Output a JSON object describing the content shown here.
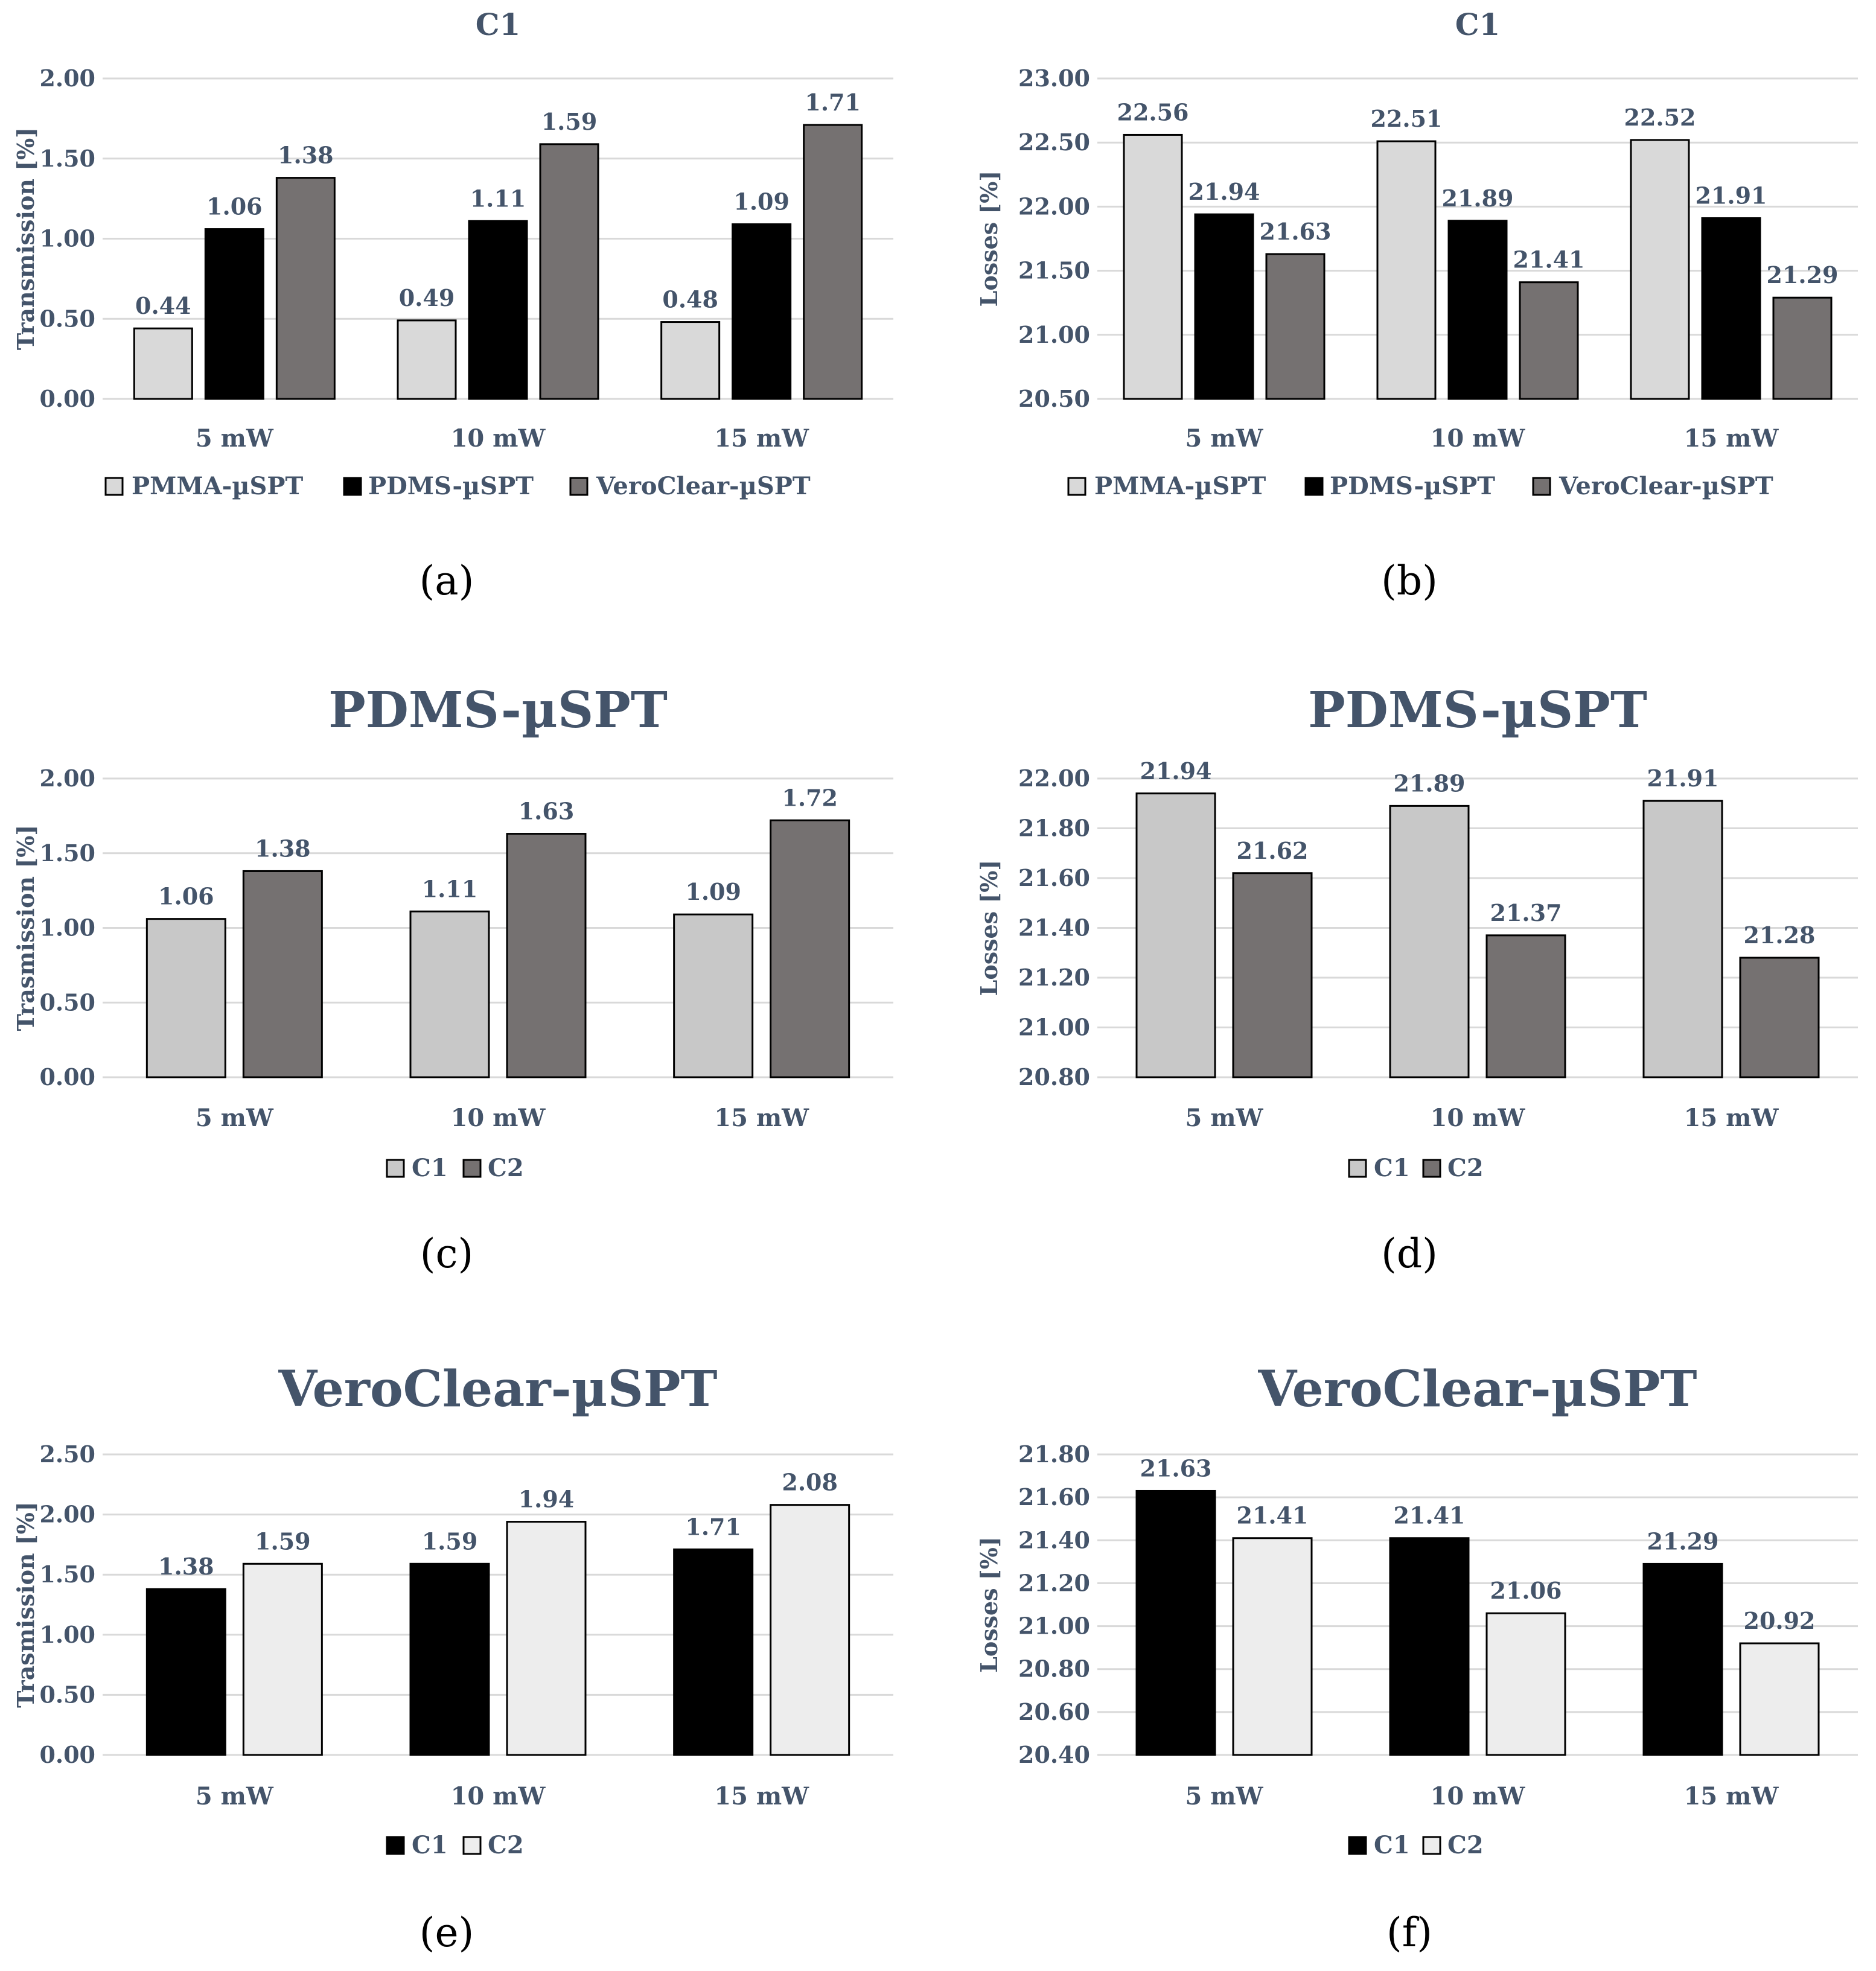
{
  "colors": {
    "pmma": "#d9d9d9",
    "pdms": "#000000",
    "vero": "#757171",
    "c1_light": "#c8c8c8",
    "c2_dark": "#757171",
    "c1_black": "#000000",
    "c2_light": "#ededed",
    "text": "#44546a",
    "grid": "#d9d9d9"
  },
  "chart_data": [
    {
      "id": "a",
      "type": "bar",
      "title": "C1",
      "title_style": "small",
      "panel_label": "(a)",
      "ylabel": "Transmission [%]",
      "ylim": [
        0,
        2
      ],
      "yticks": [
        "0.00",
        "0.50",
        "1.00",
        "1.50",
        "2.00"
      ],
      "categories": [
        "5 mW",
        "10 mW",
        "15 mW"
      ],
      "series": [
        {
          "name": "PMMA-µSPT",
          "color": "#d9d9d9",
          "values": [
            0.44,
            0.49,
            0.48
          ],
          "labels": [
            "0.44",
            "0.49",
            "0.48"
          ]
        },
        {
          "name": "PDMS-µSPT",
          "color": "#000000",
          "values": [
            1.06,
            1.11,
            1.09
          ],
          "labels": [
            "1.06",
            "1.11",
            "1.09"
          ]
        },
        {
          "name": "VeroClear-µSPT",
          "color": "#757171",
          "values": [
            1.38,
            1.59,
            1.71
          ],
          "labels": [
            "1.38",
            "1.59",
            "1.71"
          ]
        }
      ]
    },
    {
      "id": "b",
      "type": "bar",
      "title": "C1",
      "title_style": "small",
      "panel_label": "(b)",
      "ylabel": "Losses [%]",
      "ylim": [
        20.5,
        23
      ],
      "yticks": [
        "20.50",
        "21.00",
        "21.50",
        "22.00",
        "22.50",
        "23.00"
      ],
      "categories": [
        "5 mW",
        "10 mW",
        "15 mW"
      ],
      "series": [
        {
          "name": "PMMA-µSPT",
          "color": "#d9d9d9",
          "values": [
            22.56,
            22.51,
            22.52
          ],
          "labels": [
            "22.56",
            "22.51",
            "22.52"
          ]
        },
        {
          "name": "PDMS-µSPT",
          "color": "#000000",
          "values": [
            21.94,
            21.89,
            21.91
          ],
          "labels": [
            "21.94",
            "21.89",
            "21.91"
          ]
        },
        {
          "name": "VeroClear-µSPT",
          "color": "#757171",
          "values": [
            21.63,
            21.41,
            21.29
          ],
          "labels": [
            "21.63",
            "21.41",
            "21.29"
          ]
        }
      ]
    },
    {
      "id": "c",
      "type": "bar",
      "title": "PDMS-µSPT",
      "title_style": "large",
      "panel_label": "(c)",
      "ylabel": "Trasmission [%]",
      "ylim": [
        0,
        2
      ],
      "yticks": [
        "0.00",
        "0.50",
        "1.00",
        "1.50",
        "2.00"
      ],
      "categories": [
        "5 mW",
        "10 mW",
        "15 mW"
      ],
      "series": [
        {
          "name": "C1",
          "color": "#c8c8c8",
          "values": [
            1.06,
            1.11,
            1.09
          ],
          "labels": [
            "1.06",
            "1.11",
            "1.09"
          ]
        },
        {
          "name": "C2",
          "color": "#757171",
          "values": [
            1.38,
            1.63,
            1.72
          ],
          "labels": [
            "1.38",
            "1.63",
            "1.72"
          ]
        }
      ]
    },
    {
      "id": "d",
      "type": "bar",
      "title": "PDMS-µSPT",
      "title_style": "large",
      "panel_label": "(d)",
      "ylabel": "Losses [%]",
      "ylim": [
        20.8,
        22
      ],
      "yticks": [
        "20.80",
        "21.00",
        "21.20",
        "21.40",
        "21.60",
        "21.80",
        "22.00"
      ],
      "categories": [
        "5 mW",
        "10 mW",
        "15 mW"
      ],
      "series": [
        {
          "name": "C1",
          "color": "#c8c8c8",
          "values": [
            21.94,
            21.89,
            21.91
          ],
          "labels": [
            "21.94",
            "21.89",
            "21.91"
          ]
        },
        {
          "name": "C2",
          "color": "#757171",
          "values": [
            21.62,
            21.37,
            21.28
          ],
          "labels": [
            "21.62",
            "21.37",
            "21.28"
          ]
        }
      ]
    },
    {
      "id": "e",
      "type": "bar",
      "title": "VeroClear-µSPT",
      "title_style": "large",
      "panel_label": "(e)",
      "ylabel": "Trasmission [%]",
      "ylim": [
        0,
        2.5
      ],
      "yticks": [
        "0.00",
        "0.50",
        "1.00",
        "1.50",
        "2.00",
        "2.50"
      ],
      "categories": [
        "5 mW",
        "10 mW",
        "15 mW"
      ],
      "series": [
        {
          "name": "C1",
          "color": "#000000",
          "values": [
            1.38,
            1.59,
            1.71
          ],
          "labels": [
            "1.38",
            "1.59",
            "1.71"
          ]
        },
        {
          "name": "C2",
          "color": "#ededed",
          "values": [
            1.59,
            1.94,
            2.08
          ],
          "labels": [
            "1.59",
            "1.94",
            "2.08"
          ]
        }
      ]
    },
    {
      "id": "f",
      "type": "bar",
      "title": "VeroClear-µSPT",
      "title_style": "large",
      "panel_label": "(f)",
      "ylabel": "Losses [%]",
      "ylim": [
        20.4,
        21.8
      ],
      "yticks": [
        "20.40",
        "20.60",
        "20.80",
        "21.00",
        "21.20",
        "21.40",
        "21.60",
        "21.80"
      ],
      "categories": [
        "5 mW",
        "10 mW",
        "15 mW"
      ],
      "series": [
        {
          "name": "C1",
          "color": "#000000",
          "values": [
            21.63,
            21.41,
            21.29
          ],
          "labels": [
            "21.63",
            "21.41",
            "21.29"
          ]
        },
        {
          "name": "C2",
          "color": "#ededed",
          "values": [
            21.41,
            21.06,
            20.92
          ],
          "labels": [
            "21.41",
            "21.06",
            "20.92"
          ]
        }
      ]
    }
  ]
}
